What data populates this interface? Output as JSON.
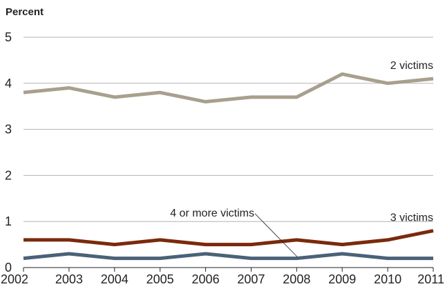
{
  "chart_data": {
    "type": "line",
    "ylabel": "Percent",
    "x": [
      "2002",
      "2003",
      "2004",
      "2005",
      "2006",
      "2007",
      "2008",
      "2009",
      "2010",
      "2011"
    ],
    "ylim": [
      0,
      5
    ],
    "yticks": [
      "0",
      "1",
      "2",
      "3",
      "4",
      "5"
    ],
    "grid": "horizontal",
    "series": [
      {
        "name": "2 victims",
        "color": "#a8a08e",
        "values": [
          3.8,
          3.9,
          3.7,
          3.8,
          3.6,
          3.7,
          3.7,
          4.2,
          4.0,
          4.1
        ]
      },
      {
        "name": "3 victims",
        "color": "#7a2a0c",
        "values": [
          0.6,
          0.6,
          0.5,
          0.6,
          0.5,
          0.5,
          0.6,
          0.5,
          0.6,
          0.8
        ]
      },
      {
        "name": "4 or more victims",
        "color": "#4a6278",
        "values": [
          0.2,
          0.3,
          0.2,
          0.2,
          0.3,
          0.2,
          0.2,
          0.3,
          0.2,
          0.2
        ]
      }
    ]
  }
}
